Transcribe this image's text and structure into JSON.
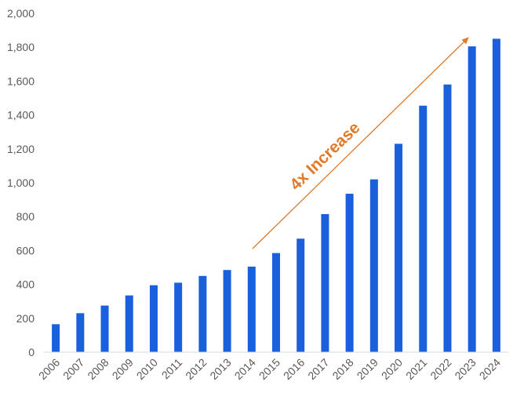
{
  "chart_data": {
    "type": "bar",
    "categories": [
      "2006",
      "2007",
      "2008",
      "2009",
      "2010",
      "2011",
      "2012",
      "2013",
      "2014",
      "2015",
      "2016",
      "2017",
      "2018",
      "2019",
      "2020",
      "2021",
      "2022",
      "2023",
      "2024"
    ],
    "values": [
      165,
      230,
      275,
      335,
      395,
      410,
      450,
      485,
      505,
      585,
      670,
      815,
      935,
      1020,
      1230,
      1455,
      1580,
      1805,
      1850
    ],
    "color": "#1a5fdc",
    "ylim": [
      0,
      2000
    ],
    "yticks": [
      0,
      200,
      400,
      600,
      800,
      {
        "value": 1000,
        "label": "1,000"
      },
      {
        "value": 1200,
        "label": "1,200"
      },
      {
        "value": 1400,
        "label": "1,400"
      },
      {
        "value": 1600,
        "label": "1,600"
      },
      {
        "value": 1800,
        "label": "1,800"
      },
      {
        "value": 2000,
        "label": "2,000"
      }
    ],
    "grid": false,
    "annotation": "4x Increase",
    "annotation_color": "#e07b2a"
  }
}
